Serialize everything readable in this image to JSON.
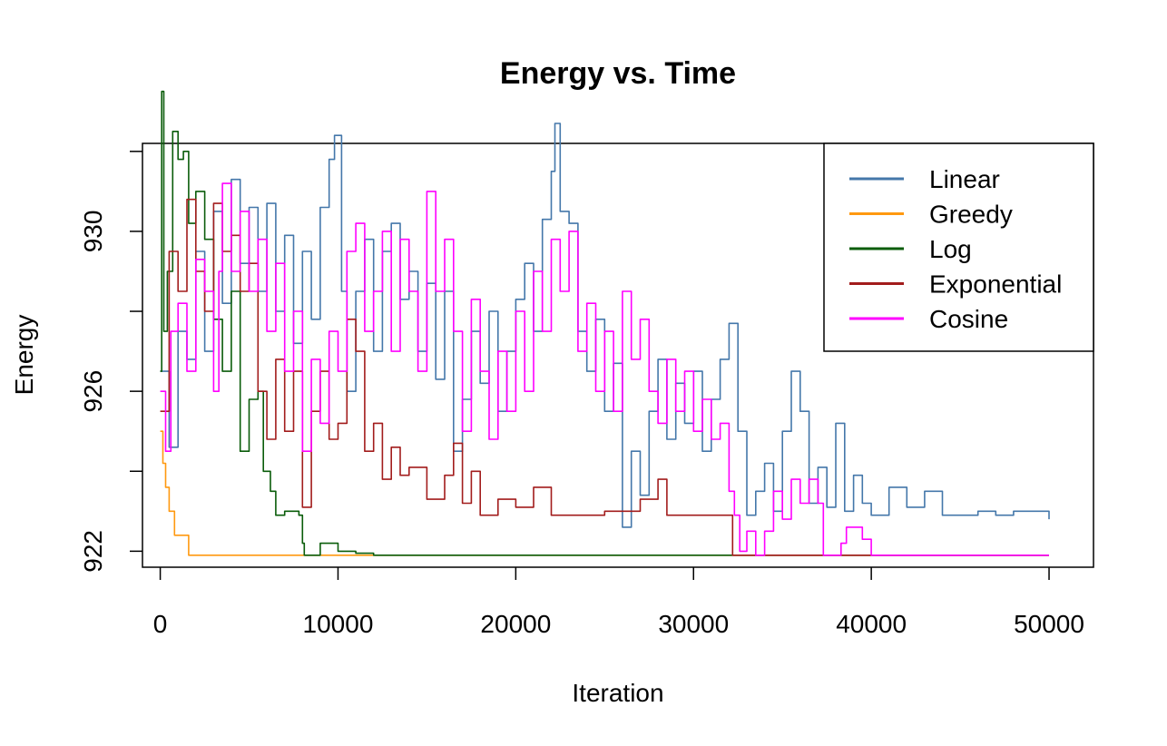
{
  "chart_data": {
    "type": "line",
    "title": "Energy vs. Time",
    "xlabel": "Iteration",
    "ylabel": "Energy",
    "xlim": [
      -1000,
      52500
    ],
    "ylim": [
      921.6,
      932.2
    ],
    "xticks": [
      0,
      10000,
      20000,
      30000,
      40000,
      50000
    ],
    "yticks": [
      922,
      924,
      926,
      928,
      930,
      932
    ],
    "ytick_labels": [
      "922",
      "",
      "926",
      "",
      "930",
      ""
    ],
    "grid": false,
    "legend_position": "top-right",
    "series": [
      {
        "name": "Linear",
        "color": "#4477AA",
        "points": [
          [
            0,
            926.5
          ],
          [
            500,
            924.6
          ],
          [
            1000,
            927.5
          ],
          [
            1500,
            926.8
          ],
          [
            2000,
            929.5
          ],
          [
            2500,
            927.0
          ],
          [
            3000,
            930.5
          ],
          [
            3500,
            928.2
          ],
          [
            4000,
            931.3
          ],
          [
            4500,
            929.2
          ],
          [
            5000,
            930.6
          ],
          [
            5500,
            928.5
          ],
          [
            6000,
            930.7
          ],
          [
            6500,
            928.0
          ],
          [
            7000,
            929.9
          ],
          [
            7500,
            927.2
          ],
          [
            8000,
            929.5
          ],
          [
            8500,
            927.8
          ],
          [
            9000,
            930.6
          ],
          [
            9500,
            931.8
          ],
          [
            9800,
            932.4
          ],
          [
            10200,
            928.5
          ],
          [
            10500,
            926.0
          ],
          [
            11000,
            928.5
          ],
          [
            11500,
            929.8
          ],
          [
            12000,
            927.0
          ],
          [
            12500,
            929.5
          ],
          [
            13000,
            930.2
          ],
          [
            13500,
            928.3
          ],
          [
            14000,
            929.0
          ],
          [
            14500,
            927.0
          ],
          [
            15000,
            928.7
          ],
          [
            15500,
            926.3
          ],
          [
            16000,
            928.5
          ],
          [
            16500,
            924.5
          ],
          [
            17000,
            925.8
          ],
          [
            17500,
            927.5
          ],
          [
            18000,
            926.2
          ],
          [
            18500,
            928.0
          ],
          [
            19000,
            925.5
          ],
          [
            19500,
            927.0
          ],
          [
            20000,
            928.3
          ],
          [
            20500,
            929.2
          ],
          [
            21000,
            927.5
          ],
          [
            21500,
            930.3
          ],
          [
            22000,
            931.5
          ],
          [
            22200,
            932.7
          ],
          [
            22500,
            930.5
          ],
          [
            23000,
            930.2
          ],
          [
            23500,
            927.5
          ],
          [
            24000,
            926.5
          ],
          [
            24500,
            927.8
          ],
          [
            25000,
            925.5
          ],
          [
            25500,
            926.7
          ],
          [
            26000,
            922.6
          ],
          [
            26500,
            924.5
          ],
          [
            27000,
            923.4
          ],
          [
            27500,
            925.5
          ],
          [
            28000,
            926.8
          ],
          [
            28500,
            924.8
          ],
          [
            29000,
            926.2
          ],
          [
            29500,
            925.2
          ],
          [
            30000,
            926.5
          ],
          [
            30500,
            924.5
          ],
          [
            31000,
            925.8
          ],
          [
            31500,
            926.8
          ],
          [
            32000,
            927.7
          ],
          [
            32500,
            925.0
          ],
          [
            33000,
            922.9
          ],
          [
            33500,
            923.5
          ],
          [
            34000,
            924.2
          ],
          [
            34500,
            923.0
          ],
          [
            35000,
            925.0
          ],
          [
            35500,
            926.5
          ],
          [
            36000,
            925.5
          ],
          [
            36500,
            923.2
          ],
          [
            37000,
            924.1
          ],
          [
            37500,
            923.1
          ],
          [
            38000,
            925.2
          ],
          [
            38500,
            923.0
          ],
          [
            39000,
            923.9
          ],
          [
            39500,
            923.2
          ],
          [
            40000,
            922.9
          ],
          [
            41000,
            923.6
          ],
          [
            42000,
            923.1
          ],
          [
            43000,
            923.5
          ],
          [
            44000,
            922.9
          ],
          [
            46000,
            923.0
          ],
          [
            47000,
            922.9
          ],
          [
            48000,
            923.0
          ],
          [
            50000,
            922.8
          ]
        ]
      },
      {
        "name": "Greedy",
        "color": "#FF9910",
        "points": [
          [
            0,
            925.0
          ],
          [
            150,
            924.2
          ],
          [
            300,
            923.6
          ],
          [
            500,
            923.0
          ],
          [
            800,
            922.4
          ],
          [
            1500,
            922.4
          ],
          [
            1600,
            921.9
          ],
          [
            50000,
            921.9
          ]
        ]
      },
      {
        "name": "Log",
        "color": "#0A5C0A",
        "points": [
          [
            0,
            926.5
          ],
          [
            80,
            933.5
          ],
          [
            200,
            927.5
          ],
          [
            400,
            929.0
          ],
          [
            700,
            932.5
          ],
          [
            1000,
            931.8
          ],
          [
            1300,
            932.0
          ],
          [
            1600,
            930.2
          ],
          [
            2000,
            931.0
          ],
          [
            2500,
            929.8
          ],
          [
            3000,
            927.8
          ],
          [
            3500,
            926.5
          ],
          [
            4000,
            928.5
          ],
          [
            4500,
            924.5
          ],
          [
            5000,
            925.8
          ],
          [
            5500,
            926.0
          ],
          [
            5800,
            924.0
          ],
          [
            6200,
            923.5
          ],
          [
            6500,
            922.9
          ],
          [
            7000,
            923.0
          ],
          [
            7800,
            922.9
          ],
          [
            8000,
            922.2
          ],
          [
            8100,
            921.9
          ],
          [
            9000,
            922.2
          ],
          [
            10000,
            922.0
          ],
          [
            11000,
            921.95
          ],
          [
            12000,
            921.9
          ],
          [
            50000,
            921.9
          ]
        ]
      },
      {
        "name": "Exponential",
        "color": "#A21C1C",
        "points": [
          [
            0,
            925.5
          ],
          [
            500,
            929.5
          ],
          [
            1000,
            928.5
          ],
          [
            1500,
            930.8
          ],
          [
            2000,
            929.0
          ],
          [
            2500,
            928.0
          ],
          [
            3000,
            930.7
          ],
          [
            3500,
            929.5
          ],
          [
            4000,
            929.9
          ],
          [
            4500,
            928.5
          ],
          [
            5000,
            929.2
          ],
          [
            5500,
            926.0
          ],
          [
            6000,
            924.8
          ],
          [
            6500,
            926.8
          ],
          [
            7000,
            925.0
          ],
          [
            7500,
            926.5
          ],
          [
            8000,
            923.1
          ],
          [
            8500,
            925.5
          ],
          [
            9000,
            926.5
          ],
          [
            9500,
            924.8
          ],
          [
            10000,
            925.2
          ],
          [
            10500,
            927.8
          ],
          [
            11000,
            927.0
          ],
          [
            11500,
            924.5
          ],
          [
            12000,
            925.2
          ],
          [
            12500,
            923.8
          ],
          [
            13000,
            924.6
          ],
          [
            13500,
            923.9
          ],
          [
            14000,
            924.1
          ],
          [
            15000,
            923.3
          ],
          [
            16000,
            923.9
          ],
          [
            16500,
            924.7
          ],
          [
            17000,
            923.2
          ],
          [
            17500,
            924.0
          ],
          [
            18000,
            922.9
          ],
          [
            19000,
            923.3
          ],
          [
            20000,
            923.1
          ],
          [
            21000,
            923.6
          ],
          [
            22000,
            922.9
          ],
          [
            25000,
            923.0
          ],
          [
            27000,
            923.3
          ],
          [
            28000,
            923.8
          ],
          [
            28500,
            922.9
          ],
          [
            32000,
            922.9
          ],
          [
            32200,
            921.9
          ],
          [
            50000,
            921.9
          ]
        ]
      },
      {
        "name": "Cosine",
        "color": "#FF00FF",
        "points": [
          [
            0,
            926.0
          ],
          [
            300,
            924.5
          ],
          [
            600,
            927.5
          ],
          [
            1000,
            928.2
          ],
          [
            1500,
            926.5
          ],
          [
            2000,
            929.3
          ],
          [
            2500,
            928.5
          ],
          [
            3000,
            926.0
          ],
          [
            3300,
            929.0
          ],
          [
            3500,
            931.2
          ],
          [
            4000,
            929.0
          ],
          [
            4500,
            930.5
          ],
          [
            5000,
            928.5
          ],
          [
            5500,
            929.8
          ],
          [
            6000,
            927.5
          ],
          [
            6500,
            929.2
          ],
          [
            7000,
            926.5
          ],
          [
            7500,
            928.0
          ],
          [
            8000,
            924.5
          ],
          [
            8500,
            926.8
          ],
          [
            9000,
            925.2
          ],
          [
            9500,
            927.5
          ],
          [
            10000,
            926.5
          ],
          [
            10500,
            929.5
          ],
          [
            11000,
            930.2
          ],
          [
            11500,
            927.5
          ],
          [
            12000,
            928.5
          ],
          [
            12500,
            930.0
          ],
          [
            13000,
            927.0
          ],
          [
            13500,
            929.8
          ],
          [
            14000,
            928.5
          ],
          [
            14500,
            926.5
          ],
          [
            15000,
            931.0
          ],
          [
            15500,
            928.5
          ],
          [
            16000,
            929.8
          ],
          [
            16500,
            927.5
          ],
          [
            17000,
            925.0
          ],
          [
            17500,
            928.3
          ],
          [
            18000,
            926.5
          ],
          [
            18500,
            924.8
          ],
          [
            19000,
            927.0
          ],
          [
            19500,
            925.5
          ],
          [
            20000,
            928.0
          ],
          [
            20500,
            926.0
          ],
          [
            21000,
            929.0
          ],
          [
            21500,
            927.5
          ],
          [
            22000,
            929.8
          ],
          [
            22500,
            928.5
          ],
          [
            23000,
            930.0
          ],
          [
            23500,
            927.0
          ],
          [
            24000,
            928.2
          ],
          [
            24500,
            926.0
          ],
          [
            25000,
            927.5
          ],
          [
            25500,
            925.5
          ],
          [
            26000,
            928.5
          ],
          [
            26500,
            926.8
          ],
          [
            27000,
            927.8
          ],
          [
            27500,
            926.0
          ],
          [
            28000,
            925.2
          ],
          [
            28500,
            926.8
          ],
          [
            29000,
            925.5
          ],
          [
            29500,
            926.5
          ],
          [
            30000,
            925.0
          ],
          [
            30500,
            925.8
          ],
          [
            31000,
            924.8
          ],
          [
            31500,
            925.2
          ],
          [
            32000,
            923.5
          ],
          [
            32300,
            922.9
          ],
          [
            32600,
            922.0
          ],
          [
            33000,
            922.5
          ],
          [
            33500,
            921.9
          ],
          [
            34000,
            922.5
          ],
          [
            34500,
            923.5
          ],
          [
            35000,
            922.8
          ],
          [
            35500,
            923.8
          ],
          [
            36000,
            923.2
          ],
          [
            36500,
            923.8
          ],
          [
            37000,
            923.2
          ],
          [
            37300,
            921.9
          ],
          [
            38000,
            921.9
          ],
          [
            38300,
            922.2
          ],
          [
            38600,
            922.6
          ],
          [
            39500,
            922.3
          ],
          [
            40000,
            921.9
          ],
          [
            50000,
            921.9
          ]
        ]
      }
    ]
  }
}
